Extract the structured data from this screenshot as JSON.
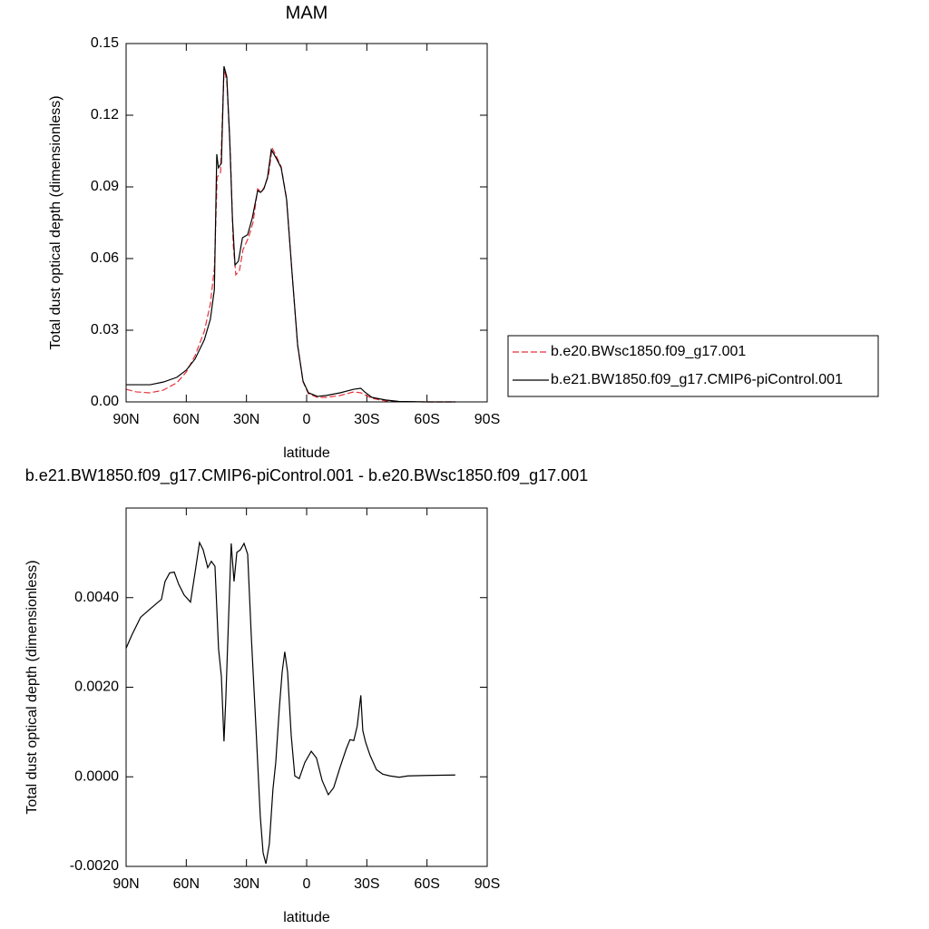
{
  "chart_data": [
    {
      "type": "line",
      "title": "MAM",
      "x_label": "latitude",
      "y_label": "Total dust optical depth (dimensionless)",
      "xlim": [
        90,
        -90
      ],
      "xticks": [
        {
          "value": 90,
          "label": "90N"
        },
        {
          "value": 60,
          "label": "60N"
        },
        {
          "value": 30,
          "label": "30N"
        },
        0,
        {
          "value": -30,
          "label": "30S"
        },
        {
          "value": -60,
          "label": "60S"
        },
        {
          "value": -90,
          "label": "90S"
        }
      ],
      "ylim": [
        0,
        0.15
      ],
      "yticks": [
        {
          "value": 0,
          "label": "0.00"
        },
        0.03,
        0.06,
        0.09,
        0.12,
        0.15
      ],
      "legend_position": "outside-right",
      "series": [
        {
          "name": "b.e20.BWsc1850.f09_g17.001",
          "color": "#e8303a",
          "dash": true,
          "x": [
            90,
            85,
            78.2,
            71.5,
            64.7,
            60,
            55.6,
            51,
            48,
            46,
            44.6,
            42.9,
            41.2,
            39.8,
            38.0,
            36.6,
            35.3,
            33.5,
            31.7,
            29,
            26.7,
            24.4,
            22.6,
            20.8,
            19.0,
            17.2,
            15,
            12.7,
            10,
            7.3,
            4.5,
            1.8,
            -0.9,
            -5.4,
            -9.9,
            -16.7,
            -23.5,
            -27,
            -28.9,
            -32.5,
            -39.3,
            -46,
            -59.9,
            -74.2
          ],
          "values": [
            0.0053,
            0.0042,
            0.0038,
            0.0049,
            0.008,
            0.0125,
            0.0194,
            0.0296,
            0.041,
            0.056,
            0.094,
            0.096,
            0.1397,
            0.134,
            0.1037,
            0.0657,
            0.0532,
            0.055,
            0.0638,
            0.0687,
            0.0752,
            0.0892,
            0.0877,
            0.0904,
            0.095,
            0.1063,
            0.1026,
            0.0984,
            0.0851,
            0.0543,
            0.0236,
            0.0084,
            0.0034,
            0.0019,
            0.0019,
            0.0027,
            0.0042,
            0.0038,
            0.003,
            0.0015,
            0.0004,
            0.0001,
            0.0,
            0.0
          ]
        },
        {
          "name": "b.e21.BW1850.f09_g17.CMIP6-piControl.001",
          "color": "#000000",
          "dash": false,
          "x": [
            90,
            78,
            71.5,
            64.7,
            60,
            55.6,
            51,
            48,
            46,
            44.8,
            44,
            42.5,
            41.2,
            39.8,
            38.4,
            37,
            35.7,
            34,
            32,
            29.4,
            27.1,
            24.4,
            23,
            21.3,
            19.5,
            17.6,
            15,
            12.7,
            10,
            7.3,
            4.5,
            1.8,
            -0.9,
            -5.4,
            -9.9,
            -16.7,
            -23.5,
            -27,
            -28.9,
            -32.5,
            -39.3,
            -46,
            -59.9,
            -74.2
          ],
          "values": [
            0.0072,
            0.0072,
            0.0083,
            0.0103,
            0.0133,
            0.018,
            0.026,
            0.0346,
            0.047,
            0.1037,
            0.098,
            0.0999,
            0.1405,
            0.136,
            0.111,
            0.077,
            0.0573,
            0.0589,
            0.0687,
            0.07,
            0.077,
            0.0885,
            0.0877,
            0.0892,
            0.094,
            0.1056,
            0.1018,
            0.098,
            0.0847,
            0.0543,
            0.0239,
            0.0087,
            0.0038,
            0.0023,
            0.0027,
            0.0038,
            0.0053,
            0.0057,
            0.0042,
            0.0019,
            0.0008,
            0.0002,
            0.0,
            0.0
          ]
        }
      ]
    },
    {
      "type": "line",
      "title": "b.e21.BW1850.f09_g17.CMIP6-piControl.001 - b.e20.BWsc1850.f09_g17.001",
      "x_label": "latitude",
      "y_label": "Total dust optical depth (dimensionless)",
      "xlim": [
        90,
        -90
      ],
      "xticks": [
        {
          "value": 90,
          "label": "90N"
        },
        {
          "value": 60,
          "label": "60N"
        },
        {
          "value": 30,
          "label": "30N"
        },
        0,
        {
          "value": -30,
          "label": "30S"
        },
        {
          "value": -60,
          "label": "60S"
        },
        {
          "value": -90,
          "label": "90S"
        }
      ],
      "ylim": [
        -0.002,
        0.006
      ],
      "yticks": [
        {
          "value": -0.002,
          "label": "-0.0020"
        },
        {
          "value": 0,
          "label": "0.0000"
        },
        {
          "value": 0.002,
          "label": "0.0020"
        },
        {
          "value": 0.004,
          "label": "0.0040"
        }
      ],
      "series": [
        {
          "color": "#000000",
          "x": [
            90,
            87.3,
            82.8,
            78.2,
            75.1,
            72.4,
            70.6,
            68.3,
            66,
            63.8,
            61.1,
            57.9,
            55.6,
            53.4,
            51.6,
            49.3,
            47.5,
            45.7,
            43.9,
            42.5,
            41.2,
            40.3,
            38.9,
            37.6,
            36.2,
            34.8,
            33,
            31.2,
            29.4,
            27.6,
            25.3,
            23.1,
            21.7,
            20.3,
            18.6,
            16.8,
            15.4,
            13.6,
            12.2,
            10.9,
            9.5,
            7.7,
            5.9,
            3.7,
            0.9,
            -2.3,
            -4.9,
            -7.7,
            -10.8,
            -13.5,
            -16.7,
            -19.8,
            -21.6,
            -23.5,
            -25.2,
            -27,
            -28,
            -29.4,
            -31.6,
            -34.8,
            -37.9,
            -41.5,
            -46.1,
            -50.5,
            -59.6,
            -74.1
          ],
          "values": [
            0.00287,
            0.00315,
            0.00356,
            0.00374,
            0.00386,
            0.00396,
            0.00436,
            0.00455,
            0.00457,
            0.0043,
            0.00406,
            0.0039,
            0.00457,
            0.00523,
            0.00507,
            0.00467,
            0.00481,
            0.0047,
            0.00285,
            0.00224,
            0.00079,
            0.00174,
            0.00356,
            0.00521,
            0.00436,
            0.00501,
            0.00507,
            0.00521,
            0.00497,
            0.00315,
            0.00113,
            -0.00089,
            -0.0017,
            -0.00194,
            -0.0015,
            -0.00028,
            0.00032,
            0.00154,
            0.00234,
            0.00279,
            0.00234,
            0.00093,
            2e-05,
            -4e-05,
            0.00032,
            0.00057,
            0.00042,
            -8e-05,
            -0.0004,
            -0.00024,
            0.00022,
            0.00063,
            0.00083,
            0.00081,
            0.00113,
            0.00182,
            0.00103,
            0.00077,
            0.00048,
            0.00016,
            6e-05,
            2e-05,
            -1e-05,
            2e-05,
            3e-05,
            4e-05
          ]
        }
      ]
    }
  ]
}
